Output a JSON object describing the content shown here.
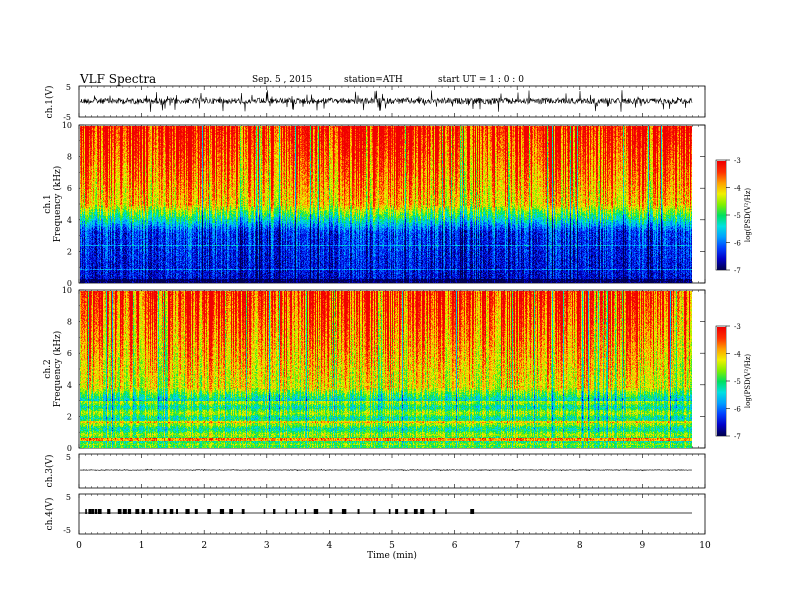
{
  "header": {
    "title": "VLF  Spectra",
    "date": "Sep. 5  , 2015",
    "station": "station=ATH",
    "start": "start  UT =   1 : 0  : 0"
  },
  "chart_data": {
    "type": "heatmap",
    "x": {
      "label": "Time  (min)",
      "ticks": [
        "0",
        "1",
        "2",
        "3",
        "4",
        "5",
        "6",
        "7",
        "8",
        "9",
        "10"
      ],
      "range": [
        0,
        10
      ],
      "data_end": 9.8
    },
    "panels": [
      {
        "id": "ch1_wave",
        "type": "line",
        "ylabel": "ch.1(V)",
        "yticks": [
          "5",
          "-5"
        ],
        "yrange": [
          -5,
          5
        ]
      },
      {
        "id": "ch1_spec",
        "type": "heatmap",
        "ylabel_ch": "ch.1",
        "ylabel": "Frequency  (kHz)",
        "yticks": [
          "0",
          "2",
          "4",
          "6",
          "8",
          "10"
        ],
        "yrange": [
          0,
          10
        ],
        "colorbar": {
          "label": "log(PSD(V²/Hz)",
          "ticks": [
            "-3",
            "-4",
            "-5",
            "-6",
            "-7"
          ],
          "range": [
            -7,
            -3
          ]
        }
      },
      {
        "id": "ch2_spec",
        "type": "heatmap",
        "ylabel_ch": "ch.2",
        "ylabel": "Frequency  (kHz)",
        "yticks": [
          "0",
          "2",
          "4",
          "6",
          "8",
          "10"
        ],
        "yrange": [
          0,
          10
        ],
        "colorbar": {
          "label": "log(PSD(V²/Hz)",
          "ticks": [
            "-3",
            "-4",
            "-5",
            "-6",
            "-7"
          ],
          "range": [
            -7,
            -3
          ]
        }
      },
      {
        "id": "ch3_wave",
        "type": "line",
        "ylabel": "ch.3(V)",
        "yticks": [
          "5"
        ],
        "yrange": [
          -5,
          5
        ]
      },
      {
        "id": "ch4_wave",
        "type": "line",
        "ylabel": "ch.4(V)",
        "yticks": [
          "5",
          "-5"
        ],
        "yrange": [
          -5,
          5
        ]
      }
    ],
    "colormap": [
      "#000050",
      "#0000c8",
      "#0040ff",
      "#00a0ff",
      "#00e0e0",
      "#00e060",
      "#80f000",
      "#f0f000",
      "#ffa000",
      "#ff3000",
      "#f00000"
    ],
    "ch4_pulse_times_min": [
      0.1,
      0.15,
      0.2,
      0.25,
      0.3,
      0.45,
      0.62,
      0.7,
      0.78,
      0.9,
      1.0,
      1.12,
      1.25,
      1.35,
      1.45,
      1.55,
      1.7,
      1.85,
      2.05,
      2.25,
      2.4,
      2.6,
      2.95,
      3.1,
      3.3,
      3.45,
      3.6,
      3.75,
      4.0,
      4.2,
      4.45,
      4.7,
      4.95,
      5.05,
      5.2,
      5.35,
      5.45,
      5.65,
      5.85,
      6.25
    ]
  }
}
